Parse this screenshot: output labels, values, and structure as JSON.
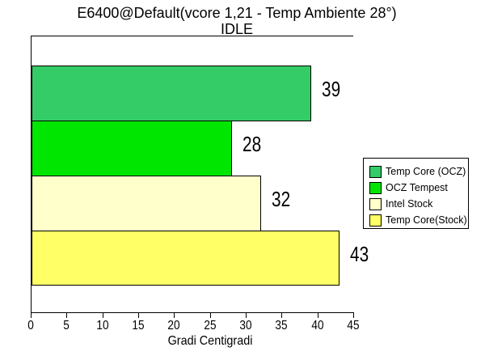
{
  "chart_data": {
    "type": "bar",
    "orientation": "horizontal",
    "title": "E6400@Default(vcore 1,21 - Temp Ambiente 28°)",
    "subtitle": "IDLE",
    "xlabel": "Gradi Centigradi",
    "xlim": [
      0,
      45
    ],
    "xticks": [
      0,
      5,
      10,
      15,
      20,
      25,
      30,
      35,
      40,
      45
    ],
    "grid": false,
    "legend_position": "right",
    "background_color": "#FFFFFF",
    "axis_color": "#000000",
    "text_color": "#000000",
    "bar_border_color": "#000000",
    "series": [
      {
        "name": "Temp Core (OCZ)",
        "value": 39,
        "color": "#33CC66"
      },
      {
        "name": "OCZ Tempest",
        "value": 28,
        "color": "#00E600"
      },
      {
        "name": "Intel Stock",
        "value": 32,
        "color": "#FFFFCC"
      },
      {
        "name": "Temp Core(Stock)",
        "value": 43,
        "color": "#FFFF66"
      }
    ]
  }
}
